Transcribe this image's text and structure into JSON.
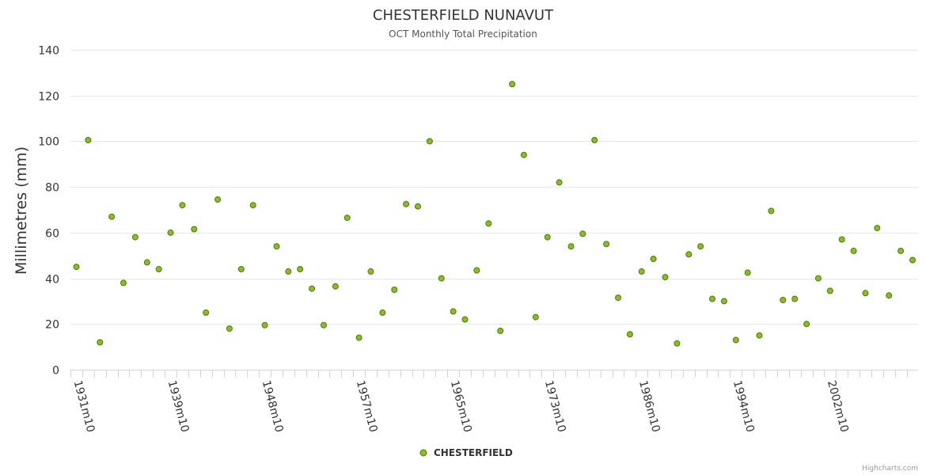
{
  "chart_data": {
    "type": "scatter",
    "title": "CHESTERFIELD NUNAVUT",
    "subtitle": "OCT Monthly Total Precipitation",
    "ylabel": "Millimetres (mm)",
    "xlabel": "",
    "ylim": [
      0,
      140
    ],
    "yticks": [
      "0",
      "20",
      "40",
      "60",
      "80",
      "100",
      "120",
      "140"
    ],
    "xtick_labels": [
      {
        "index": 0,
        "label": "1931m10"
      },
      {
        "index": 8,
        "label": "1939m10"
      },
      {
        "index": 16,
        "label": "1948m10"
      },
      {
        "index": 24,
        "label": "1957m10"
      },
      {
        "index": 32,
        "label": "1965m10"
      },
      {
        "index": 40,
        "label": "1973m10"
      },
      {
        "index": 48,
        "label": "1986m10"
      },
      {
        "index": 56,
        "label": "1994m10"
      },
      {
        "index": 64,
        "label": "2002m10"
      }
    ],
    "point_count": 72,
    "grid": true,
    "legend": "bottom-center",
    "series": [
      {
        "name": "CHESTERFIELD",
        "color": "#8bbc21",
        "values": [
          45,
          100.5,
          12,
          67,
          38,
          58,
          47,
          44,
          60,
          72,
          61.5,
          25,
          74.5,
          18,
          44,
          72,
          19.5,
          54,
          43,
          44,
          35.5,
          19.5,
          36.5,
          66.5,
          14,
          43,
          25,
          35,
          72.5,
          71.5,
          100,
          40,
          25.5,
          22,
          43.5,
          64,
          17,
          125,
          94,
          23,
          58,
          82,
          54,
          59.5,
          100.5,
          55,
          31.5,
          15.5,
          43,
          48.5,
          40.5,
          11.5,
          50.5,
          54,
          31,
          30,
          13,
          42.5,
          15,
          69.5,
          30.5,
          31,
          20,
          40,
          34.5,
          57,
          52,
          33.5,
          62,
          32.5,
          52,
          48
        ]
      }
    ]
  },
  "credits": "Highcharts.com",
  "colors": {
    "marker_fill": "#8bbc21",
    "marker_stroke": "#4d7a0b",
    "grid": "#e6e6e6",
    "axis": "#ccd6eb"
  }
}
